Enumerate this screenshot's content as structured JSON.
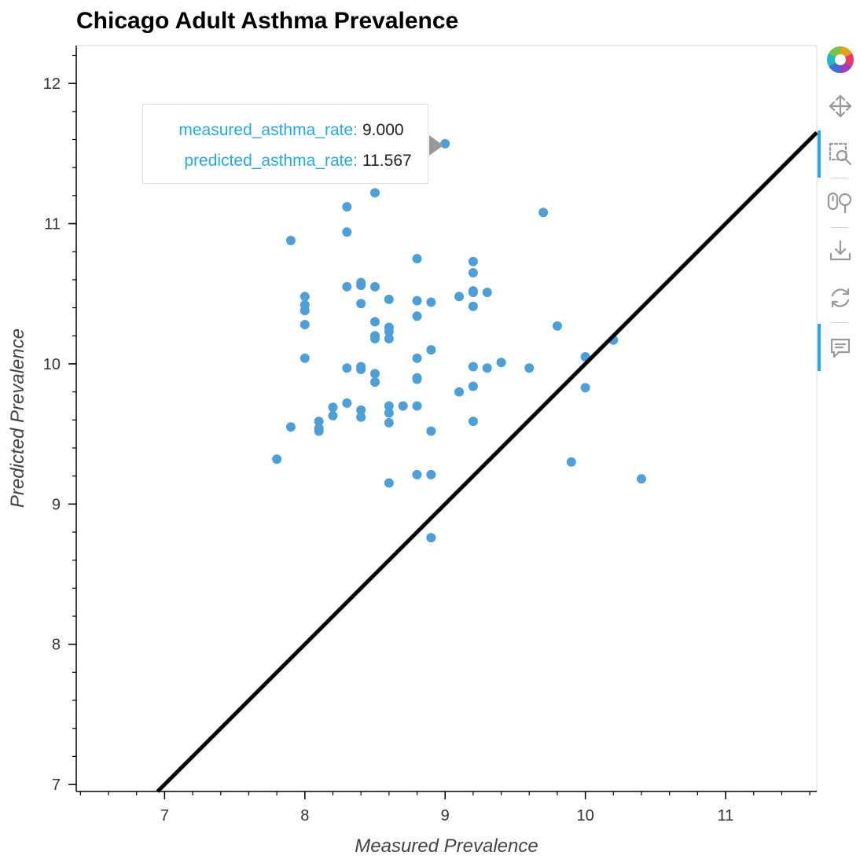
{
  "chart_data": {
    "type": "scatter",
    "title": "Chicago Adult Asthma Prevalence",
    "xlabel": "Measured Prevalence",
    "ylabel": "Predicted Prevalence",
    "xlim": [
      6.37,
      11.65
    ],
    "ylim": [
      6.95,
      12.27
    ],
    "xticks": [
      7,
      8,
      9,
      10,
      11
    ],
    "yticks": [
      7,
      8,
      9,
      10,
      11,
      12
    ],
    "grid": false,
    "point_color": "#4e9fd8",
    "line_color": "#000000",
    "reference_line": {
      "name": "y = x",
      "from": [
        6.95,
        6.95
      ],
      "to": [
        11.65,
        11.65
      ]
    },
    "points": [
      [
        9.0,
        11.57
      ],
      [
        8.5,
        11.22
      ],
      [
        8.3,
        11.12
      ],
      [
        9.7,
        11.08
      ],
      [
        8.3,
        10.94
      ],
      [
        7.9,
        10.88
      ],
      [
        8.8,
        10.75
      ],
      [
        9.2,
        10.73
      ],
      [
        9.2,
        10.65
      ],
      [
        8.4,
        10.58
      ],
      [
        8.4,
        10.56
      ],
      [
        8.3,
        10.55
      ],
      [
        8.5,
        10.55
      ],
      [
        9.2,
        10.52
      ],
      [
        9.2,
        10.51
      ],
      [
        9.3,
        10.51
      ],
      [
        8.0,
        10.48
      ],
      [
        9.1,
        10.48
      ],
      [
        8.6,
        10.46
      ],
      [
        8.8,
        10.45
      ],
      [
        8.9,
        10.44
      ],
      [
        8.4,
        10.43
      ],
      [
        8.0,
        10.42
      ],
      [
        9.2,
        10.41
      ],
      [
        8.0,
        10.38
      ],
      [
        8.8,
        10.34
      ],
      [
        8.5,
        10.3
      ],
      [
        8.0,
        10.28
      ],
      [
        9.8,
        10.27
      ],
      [
        8.6,
        10.26
      ],
      [
        8.6,
        10.23
      ],
      [
        8.5,
        10.2
      ],
      [
        8.6,
        10.18
      ],
      [
        8.5,
        10.18
      ],
      [
        10.2,
        10.17
      ],
      [
        8.9,
        10.1
      ],
      [
        10.0,
        10.05
      ],
      [
        8.0,
        10.04
      ],
      [
        8.8,
        10.04
      ],
      [
        9.4,
        10.01
      ],
      [
        8.3,
        9.97
      ],
      [
        8.4,
        9.98
      ],
      [
        9.2,
        9.98
      ],
      [
        9.3,
        9.97
      ],
      [
        9.6,
        9.97
      ],
      [
        8.4,
        9.96
      ],
      [
        8.5,
        9.93
      ],
      [
        8.8,
        9.9
      ],
      [
        8.8,
        9.89
      ],
      [
        8.5,
        9.87
      ],
      [
        9.2,
        9.84
      ],
      [
        10.0,
        9.83
      ],
      [
        9.1,
        9.8
      ],
      [
        8.3,
        9.72
      ],
      [
        8.6,
        9.7
      ],
      [
        8.7,
        9.7
      ],
      [
        8.8,
        9.7
      ],
      [
        8.2,
        9.69
      ],
      [
        8.4,
        9.67
      ],
      [
        8.6,
        9.65
      ],
      [
        8.2,
        9.63
      ],
      [
        8.4,
        9.62
      ],
      [
        8.1,
        9.59
      ],
      [
        9.2,
        9.59
      ],
      [
        8.6,
        9.58
      ],
      [
        7.9,
        9.55
      ],
      [
        8.1,
        9.54
      ],
      [
        8.1,
        9.52
      ],
      [
        8.9,
        9.52
      ],
      [
        7.8,
        9.32
      ],
      [
        9.9,
        9.3
      ],
      [
        8.8,
        9.21
      ],
      [
        8.9,
        9.21
      ],
      [
        10.4,
        9.18
      ],
      [
        8.6,
        9.15
      ],
      [
        8.9,
        8.76
      ]
    ]
  },
  "tooltip": {
    "rows": [
      {
        "key": "measured_asthma_rate:",
        "value": "9.000"
      },
      {
        "key": "predicted_asthma_rate:",
        "value": "11.567"
      }
    ]
  },
  "toolbar": {
    "items": [
      {
        "name": "bokeh-logo-icon"
      },
      {
        "name": "pan-icon"
      },
      {
        "name": "box-zoom-icon",
        "active": true
      },
      {
        "name": "wheel-zoom-icon"
      },
      {
        "name": "save-icon"
      },
      {
        "name": "reset-icon"
      },
      {
        "name": "hover-icon",
        "active": true
      }
    ]
  }
}
